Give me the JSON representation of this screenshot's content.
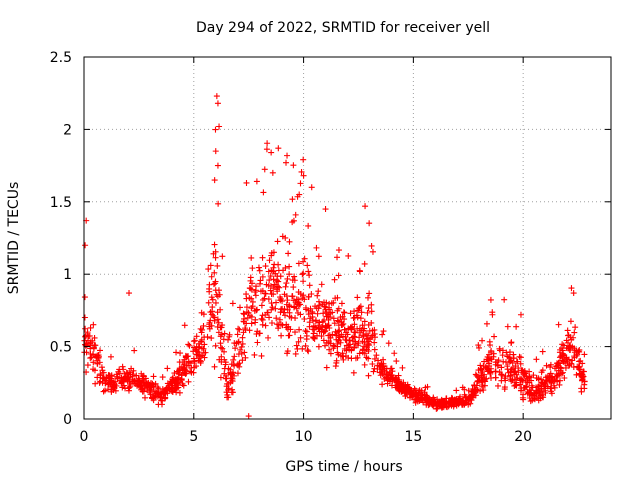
{
  "chart_data": {
    "type": "scatter",
    "title": "Day 294 of 2022, SRMTID for receiver yell",
    "xlabel": "GPS time / hours",
    "ylabel": "SRMTID / TECUs",
    "xlim": [
      0,
      24
    ],
    "ylim": [
      0,
      2.5
    ],
    "xticks": [
      0,
      5,
      10,
      15,
      20
    ],
    "xtick_labels": [
      "0",
      "5",
      "10",
      "15",
      "20"
    ],
    "yticks": [
      0,
      0.5,
      1,
      1.5,
      2,
      2.5
    ],
    "ytick_labels": [
      "0",
      "0.5",
      "1",
      "1.5",
      "2",
      "2.5"
    ],
    "grid": true,
    "marker": "+",
    "series_color": "#ff0000",
    "envelope": [
      {
        "x": 0.0,
        "y": 0.55,
        "spread": 0.25
      },
      {
        "x": 0.5,
        "y": 0.45,
        "spread": 0.3
      },
      {
        "x": 1.0,
        "y": 0.25,
        "spread": 0.1
      },
      {
        "x": 2.0,
        "y": 0.28,
        "spread": 0.12
      },
      {
        "x": 3.0,
        "y": 0.22,
        "spread": 0.1
      },
      {
        "x": 3.5,
        "y": 0.15,
        "spread": 0.07
      },
      {
        "x": 4.5,
        "y": 0.3,
        "spread": 0.15
      },
      {
        "x": 5.5,
        "y": 0.55,
        "spread": 0.35
      },
      {
        "x": 6.0,
        "y": 0.95,
        "spread": 0.65
      },
      {
        "x": 6.5,
        "y": 0.2,
        "spread": 0.15
      },
      {
        "x": 7.5,
        "y": 0.75,
        "spread": 0.45
      },
      {
        "x": 8.5,
        "y": 0.9,
        "spread": 0.55
      },
      {
        "x": 9.0,
        "y": 0.85,
        "spread": 0.55
      },
      {
        "x": 10.0,
        "y": 0.8,
        "spread": 0.5
      },
      {
        "x": 11.0,
        "y": 0.65,
        "spread": 0.35
      },
      {
        "x": 12.0,
        "y": 0.55,
        "spread": 0.3
      },
      {
        "x": 13.0,
        "y": 0.6,
        "spread": 0.4
      },
      {
        "x": 13.5,
        "y": 0.35,
        "spread": 0.15
      },
      {
        "x": 14.5,
        "y": 0.22,
        "spread": 0.08
      },
      {
        "x": 16.0,
        "y": 0.1,
        "spread": 0.05
      },
      {
        "x": 17.5,
        "y": 0.13,
        "spread": 0.05
      },
      {
        "x": 18.5,
        "y": 0.4,
        "spread": 0.25
      },
      {
        "x": 19.5,
        "y": 0.35,
        "spread": 0.25
      },
      {
        "x": 20.5,
        "y": 0.2,
        "spread": 0.15
      },
      {
        "x": 21.5,
        "y": 0.3,
        "spread": 0.15
      },
      {
        "x": 22.2,
        "y": 0.55,
        "spread": 0.3
      },
      {
        "x": 22.8,
        "y": 0.25,
        "spread": 0.12
      }
    ],
    "highlights": [
      {
        "x": 6.05,
        "y": 2.23
      },
      {
        "x": 6.1,
        "y": 2.18
      },
      {
        "x": 6.15,
        "y": 2.02
      },
      {
        "x": 6.0,
        "y": 1.85
      },
      {
        "x": 6.1,
        "y": 1.75
      },
      {
        "x": 5.95,
        "y": 1.65
      },
      {
        "x": 8.85,
        "y": 1.87
      },
      {
        "x": 9.2,
        "y": 1.77
      },
      {
        "x": 8.6,
        "y": 1.7
      },
      {
        "x": 10.0,
        "y": 1.68
      },
      {
        "x": 9.8,
        "y": 1.55
      },
      {
        "x": 7.4,
        "y": 1.63
      },
      {
        "x": 12.8,
        "y": 1.47
      },
      {
        "x": 11.0,
        "y": 1.45
      },
      {
        "x": 0.1,
        "y": 1.37
      },
      {
        "x": 0.05,
        "y": 1.2
      },
      {
        "x": 2.05,
        "y": 0.87
      },
      {
        "x": 22.3,
        "y": 0.87
      },
      {
        "x": 18.6,
        "y": 0.72
      },
      {
        "x": 19.9,
        "y": 0.72
      },
      {
        "x": 7.5,
        "y": 0.02
      }
    ],
    "n_points": 1800
  }
}
